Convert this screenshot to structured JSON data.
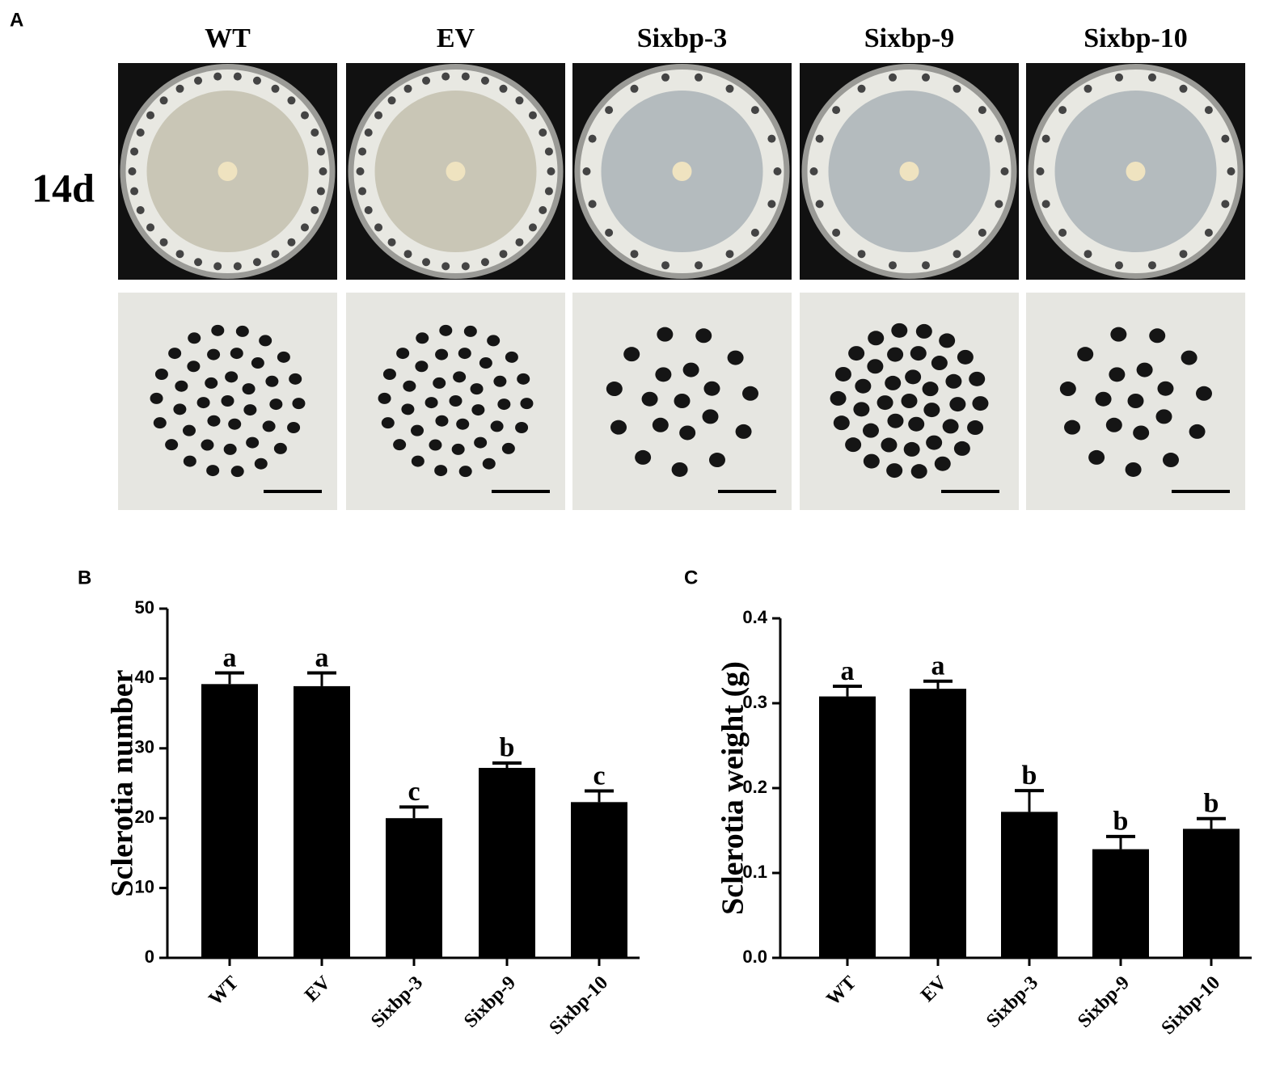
{
  "panel_a": {
    "label": "A",
    "columns": [
      "WT",
      "EV",
      "Sixbp-3",
      "Sixbp-9",
      "Sixbp-10"
    ],
    "row_label": "14d"
  },
  "chart_data": [
    {
      "type": "bar",
      "panel_label": "B",
      "y_label": "Sclerotia number",
      "categories": [
        "WT",
        "EV",
        "Sixbp-3",
        "Sixbp-9",
        "Sixbp-10"
      ],
      "values": [
        39.2,
        38.9,
        20,
        27.2,
        22.3
      ],
      "errors": [
        1.6,
        1.9,
        1.6,
        0.7,
        1.6
      ],
      "letters": [
        "a",
        "a",
        "c",
        "b",
        "c"
      ],
      "color": "#000000",
      "ylim": [
        0,
        50
      ],
      "yticks": [
        0,
        10,
        20,
        30,
        40,
        50
      ]
    },
    {
      "type": "bar",
      "panel_label": "C",
      "y_label": "Sclerotia weight (g)",
      "categories": [
        "WT",
        "EV",
        "Sixbp-3",
        "Sixbp-9",
        "Sixbp-10"
      ],
      "values": [
        0.308,
        0.317,
        0.172,
        0.128,
        0.152
      ],
      "errors": [
        0.012,
        0.009,
        0.025,
        0.015,
        0.012
      ],
      "letters": [
        "a",
        "a",
        "b",
        "b",
        "b"
      ],
      "color": "#000000",
      "ylim": [
        0,
        0.4
      ],
      "yticks": [
        {
          "value": 0,
          "label": "0.0"
        },
        0.1,
        0.2,
        0.3,
        0.4
      ]
    }
  ]
}
